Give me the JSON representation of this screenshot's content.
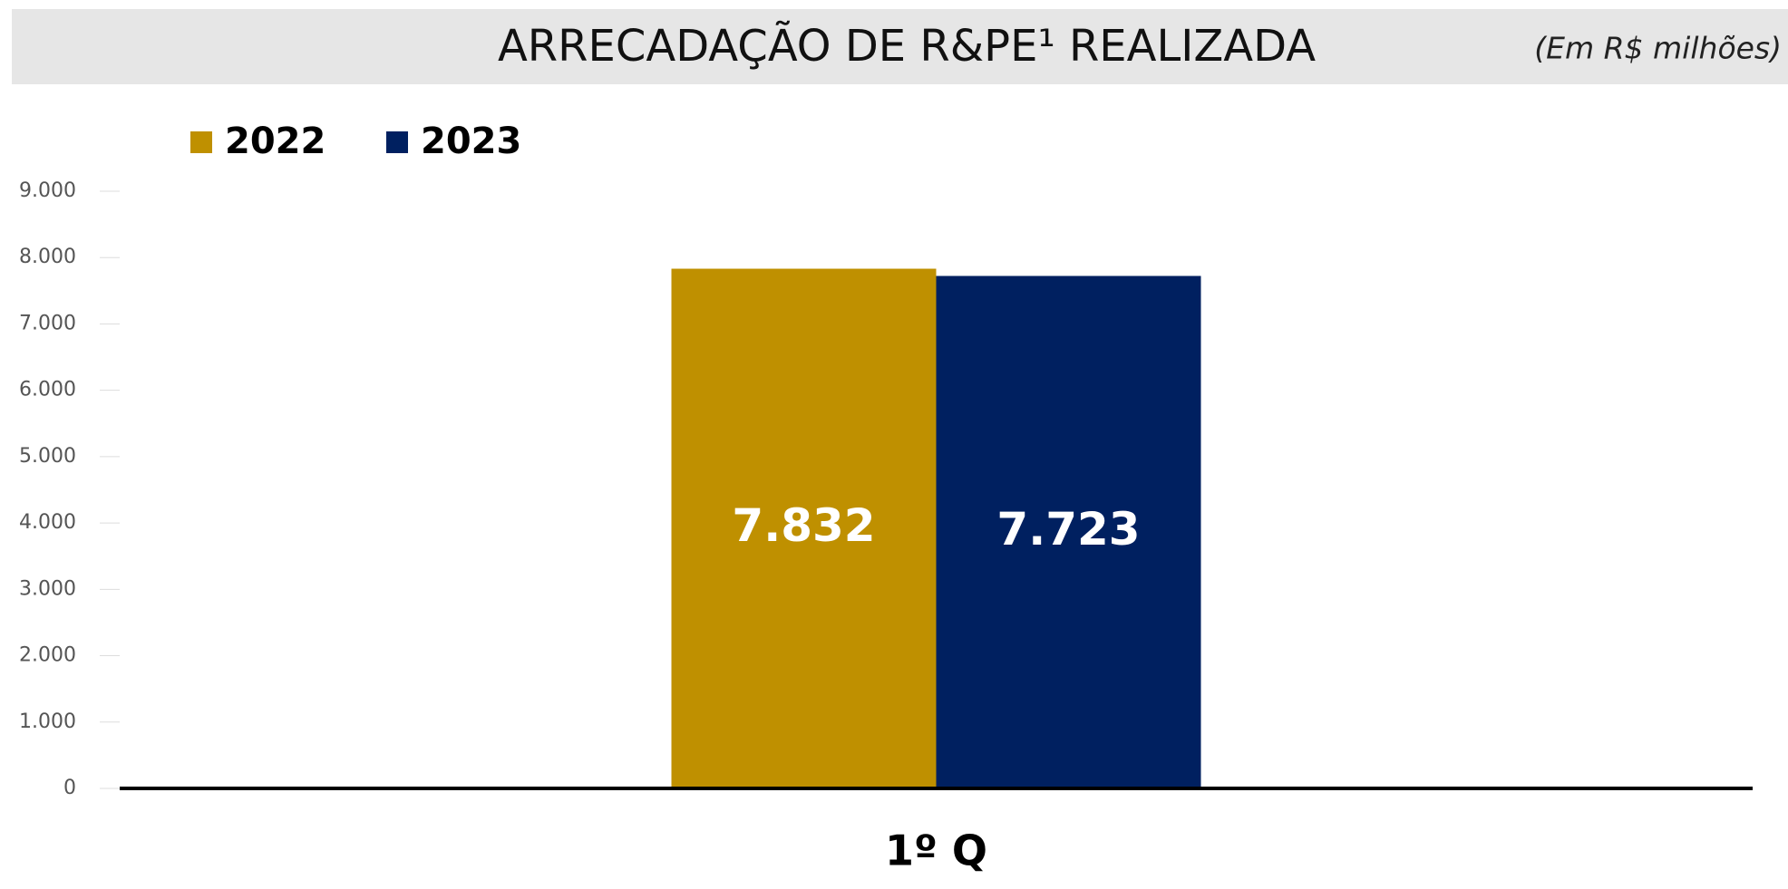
{
  "chart_data": {
    "type": "bar",
    "title": "ARRECADAÇÃO DE R&PE¹ REALIZADA",
    "subtitle": "(Em R$ milhões)",
    "categories": [
      "1º Q"
    ],
    "series": [
      {
        "name": "2022",
        "color": "#bf9000",
        "values": [
          7832
        ],
        "value_labels": [
          "7.832"
        ]
      },
      {
        "name": "2023",
        "color": "#002060",
        "values": [
          7723
        ],
        "value_labels": [
          "7.723"
        ]
      }
    ],
    "ylim": [
      0,
      9000
    ],
    "yticks": [
      0,
      {
        "value": 1000,
        "label": "1.000"
      },
      {
        "value": 2000,
        "label": "2.000"
      },
      {
        "value": 3000,
        "label": "3.000"
      },
      {
        "value": 4000,
        "label": "4.000"
      },
      {
        "value": 5000,
        "label": "5.000"
      },
      {
        "value": 6000,
        "label": "6.000"
      },
      {
        "value": 7000,
        "label": "7.000"
      },
      {
        "value": 8000,
        "label": "8.000"
      },
      {
        "value": 9000,
        "label": "9.000"
      }
    ],
    "legend": "top-left"
  }
}
